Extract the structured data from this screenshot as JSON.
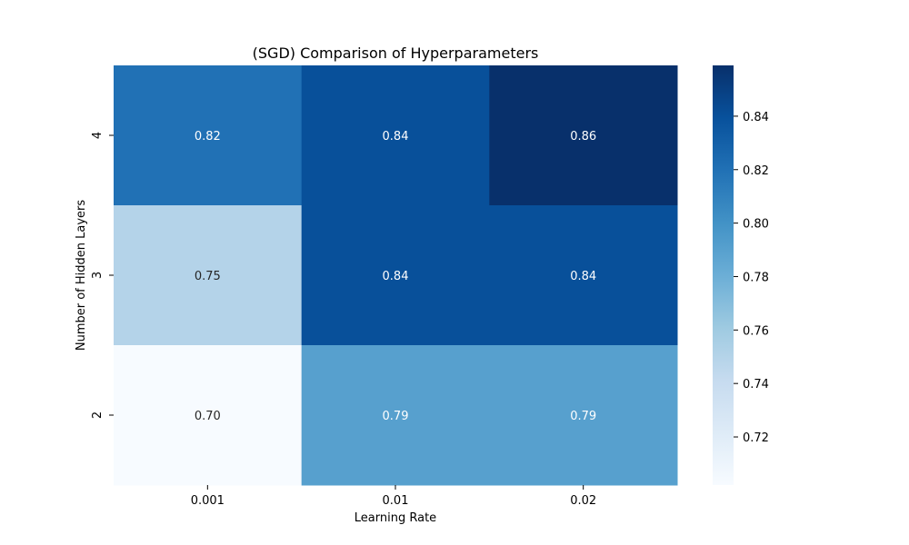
{
  "chart_data": {
    "type": "heatmap",
    "title": "(SGD) Comparison of Hyperparameters",
    "xlabel": "Learning Rate",
    "ylabel": "Number of Hidden Layers",
    "x_categories": [
      "0.001",
      "0.01",
      "0.02"
    ],
    "y_categories": [
      "4",
      "3",
      "2"
    ],
    "values": [
      [
        0.82,
        0.84,
        0.86
      ],
      [
        0.75,
        0.84,
        0.84
      ],
      [
        0.7,
        0.79,
        0.79
      ]
    ],
    "value_labels": [
      [
        "0.82",
        "0.84",
        "0.86"
      ],
      [
        "0.75",
        "0.84",
        "0.84"
      ],
      [
        "0.70",
        "0.79",
        "0.79"
      ]
    ],
    "colorbar": {
      "colormap": "Blues",
      "range": [
        0.702,
        0.859
      ],
      "ticks": [
        0.72,
        0.74,
        0.76,
        0.78,
        0.8,
        0.82,
        0.84
      ],
      "tick_labels": [
        "0.72",
        "0.74",
        "0.76",
        "0.78",
        "0.80",
        "0.82",
        "0.84"
      ]
    }
  }
}
